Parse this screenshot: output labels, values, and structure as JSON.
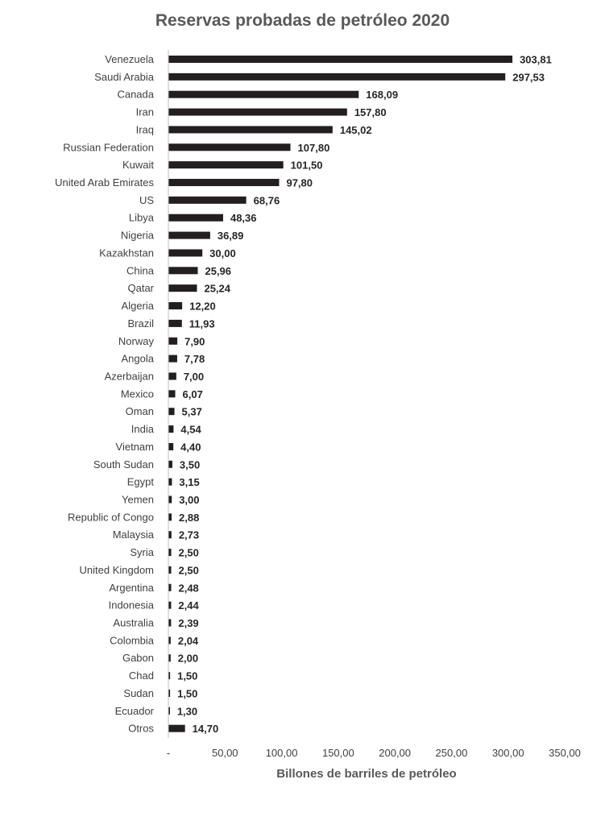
{
  "chart_data": {
    "type": "bar",
    "orientation": "horizontal",
    "title": "Reservas probadas de petróleo 2020",
    "xlabel": "Billones de barriles de petróleo",
    "ylabel": "",
    "xlim": [
      0,
      350
    ],
    "x_ticks": [
      0,
      50,
      100,
      150,
      200,
      250,
      300,
      350
    ],
    "x_tick_labels": [
      "-",
      "50,00",
      "100,00",
      "150,00",
      "200,00",
      "250,00",
      "300,00",
      "350,00"
    ],
    "grid": false,
    "legend": "none",
    "bar_color": "#231f20",
    "categories": [
      "Venezuela",
      "Saudi Arabia",
      "Canada",
      "Iran",
      "Iraq",
      "Russian Federation",
      "Kuwait",
      "United Arab Emirates",
      "US",
      "Libya",
      "Nigeria",
      "Kazakhstan",
      "China",
      "Qatar",
      "Algeria",
      "Brazil",
      "Norway",
      "Angola",
      "Azerbaijan",
      "Mexico",
      "Oman",
      "India",
      "Vietnam",
      "South Sudan",
      "Egypt",
      "Yemen",
      "Republic of Congo",
      "Malaysia",
      "Syria",
      "United Kingdom",
      "Argentina",
      "Indonesia",
      "Australia",
      "Colombia",
      "Gabon",
      "Chad",
      "Sudan",
      "Ecuador",
      "Otros"
    ],
    "values": [
      303.81,
      297.53,
      168.09,
      157.8,
      145.02,
      107.8,
      101.5,
      97.8,
      68.76,
      48.36,
      36.89,
      30.0,
      25.96,
      25.24,
      12.2,
      11.93,
      7.9,
      7.78,
      7.0,
      6.07,
      5.37,
      4.54,
      4.4,
      3.5,
      3.15,
      3.0,
      2.88,
      2.73,
      2.5,
      2.5,
      2.48,
      2.44,
      2.39,
      2.04,
      2.0,
      1.5,
      1.5,
      1.3,
      14.7
    ],
    "data_labels": [
      "303,81",
      "297,53",
      "168,09",
      "157,80",
      "145,02",
      "107,80",
      "101,50",
      "97,80",
      "68,76",
      "48,36",
      "36,89",
      "30,00",
      "25,96",
      "25,24",
      "12,20",
      "11,93",
      "7,90",
      "7,78",
      "7,00",
      "6,07",
      "5,37",
      "4,54",
      "4,40",
      "3,50",
      "3,15",
      "3,00",
      "2,88",
      "2,73",
      "2,50",
      "2,50",
      "2,48",
      "2,44",
      "2,39",
      "2,04",
      "2,00",
      "1,50",
      "1,50",
      "1,30",
      "14,70"
    ]
  }
}
